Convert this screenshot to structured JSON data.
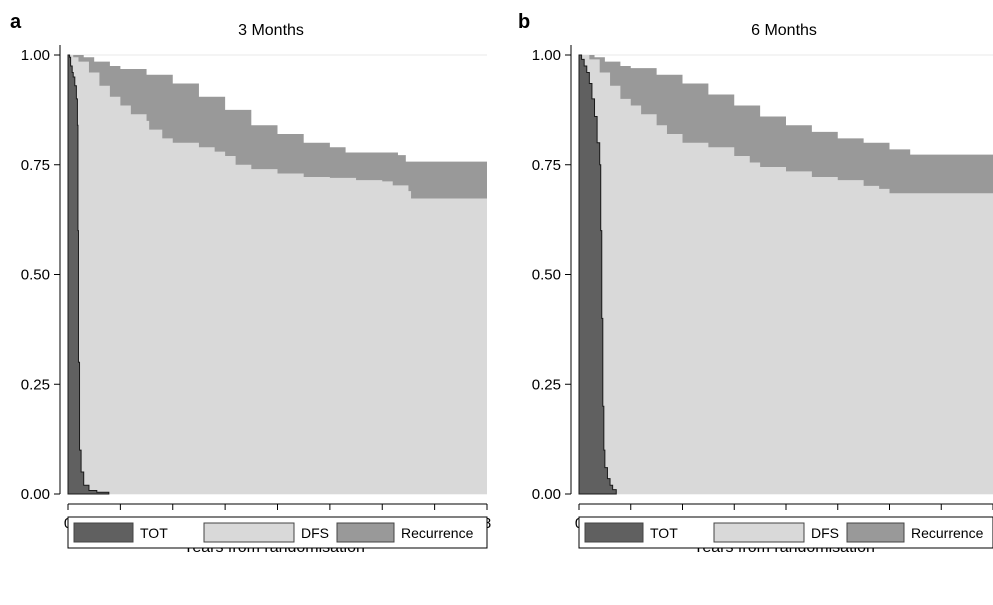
{
  "chart_data": [
    {
      "panel_label": "a",
      "type": "area",
      "title": "3 Months",
      "xlabel": "Years from randomisation",
      "ylabel": "",
      "xlim": [
        0,
        8
      ],
      "ylim": [
        0,
        1
      ],
      "x_ticks": [
        "0",
        "1",
        "2",
        "3",
        "4",
        "5",
        "6",
        "7",
        "8"
      ],
      "y_ticks": [
        "0.00",
        "0.25",
        "0.50",
        "0.75",
        "1.00"
      ],
      "grid": true,
      "legend": {
        "placement": "bottom",
        "entries": [
          "TOT",
          "DFS",
          "Recurrence"
        ]
      },
      "colors": {
        "TOT": "#606060",
        "DFS": "#d9d9d9",
        "Recurrence": "#999999"
      },
      "series": [
        {
          "name": "Recurrence",
          "points": [
            [
              0,
              1.0
            ],
            [
              0.3,
              0.995
            ],
            [
              0.5,
              0.985
            ],
            [
              0.8,
              0.975
            ],
            [
              1.0,
              0.968
            ],
            [
              1.5,
              0.955
            ],
            [
              2.0,
              0.935
            ],
            [
              2.5,
              0.905
            ],
            [
              3.0,
              0.875
            ],
            [
              3.5,
              0.84
            ],
            [
              4.0,
              0.82
            ],
            [
              4.5,
              0.8
            ],
            [
              5.0,
              0.79
            ],
            [
              5.3,
              0.778
            ],
            [
              6.0,
              0.778
            ],
            [
              6.3,
              0.772
            ],
            [
              6.45,
              0.757
            ],
            [
              8.0,
              0.757
            ]
          ]
        },
        {
          "name": "DFS",
          "points": [
            [
              0,
              1.0
            ],
            [
              0.1,
              0.995
            ],
            [
              0.2,
              0.985
            ],
            [
              0.4,
              0.96
            ],
            [
              0.6,
              0.93
            ],
            [
              0.8,
              0.905
            ],
            [
              1.0,
              0.885
            ],
            [
              1.2,
              0.865
            ],
            [
              1.5,
              0.85
            ],
            [
              1.55,
              0.83
            ],
            [
              1.8,
              0.81
            ],
            [
              2.0,
              0.8
            ],
            [
              2.5,
              0.79
            ],
            [
              2.8,
              0.78
            ],
            [
              3.0,
              0.77
            ],
            [
              3.2,
              0.75
            ],
            [
              3.5,
              0.74
            ],
            [
              4.0,
              0.73
            ],
            [
              4.5,
              0.722
            ],
            [
              5.0,
              0.72
            ],
            [
              5.5,
              0.715
            ],
            [
              6.0,
              0.712
            ],
            [
              6.2,
              0.703
            ],
            [
              6.5,
              0.69
            ],
            [
              6.55,
              0.673
            ],
            [
              8.0,
              0.673
            ]
          ]
        },
        {
          "name": "TOT",
          "points": [
            [
              0,
              1.0
            ],
            [
              0.03,
              0.995
            ],
            [
              0.05,
              0.975
            ],
            [
              0.08,
              0.96
            ],
            [
              0.1,
              0.95
            ],
            [
              0.13,
              0.93
            ],
            [
              0.16,
              0.9
            ],
            [
              0.18,
              0.84
            ],
            [
              0.19,
              0.6
            ],
            [
              0.2,
              0.3
            ],
            [
              0.22,
              0.1
            ],
            [
              0.25,
              0.05
            ],
            [
              0.3,
              0.02
            ],
            [
              0.4,
              0.008
            ],
            [
              0.55,
              0.004
            ],
            [
              0.78,
              0.0
            ]
          ]
        }
      ]
    },
    {
      "panel_label": "b",
      "type": "area",
      "title": "6 Months",
      "xlabel": "Years from randomisation",
      "ylabel": "",
      "xlim": [
        0,
        8
      ],
      "ylim": [
        0,
        1
      ],
      "x_ticks": [
        "0",
        "1",
        "2",
        "3",
        "4",
        "5",
        "6",
        "7",
        "8"
      ],
      "y_ticks": [
        "0.00",
        "0.25",
        "0.50",
        "0.75",
        "1.00"
      ],
      "grid": true,
      "legend": {
        "placement": "bottom",
        "entries": [
          "TOT",
          "DFS",
          "Recurrence"
        ]
      },
      "colors": {
        "TOT": "#606060",
        "DFS": "#d9d9d9",
        "Recurrence": "#999999"
      },
      "series": [
        {
          "name": "Recurrence",
          "points": [
            [
              0,
              1.0
            ],
            [
              0.3,
              0.995
            ],
            [
              0.5,
              0.985
            ],
            [
              0.8,
              0.975
            ],
            [
              1.0,
              0.97
            ],
            [
              1.5,
              0.955
            ],
            [
              2.0,
              0.935
            ],
            [
              2.5,
              0.91
            ],
            [
              3.0,
              0.885
            ],
            [
              3.5,
              0.86
            ],
            [
              4.0,
              0.84
            ],
            [
              4.5,
              0.825
            ],
            [
              5.0,
              0.81
            ],
            [
              5.5,
              0.8
            ],
            [
              6.0,
              0.785
            ],
            [
              6.4,
              0.773
            ],
            [
              8.0,
              0.773
            ]
          ]
        },
        {
          "name": "DFS",
          "points": [
            [
              0,
              1.0
            ],
            [
              0.2,
              0.99
            ],
            [
              0.4,
              0.96
            ],
            [
              0.6,
              0.93
            ],
            [
              0.8,
              0.9
            ],
            [
              1.0,
              0.885
            ],
            [
              1.2,
              0.865
            ],
            [
              1.5,
              0.84
            ],
            [
              1.7,
              0.82
            ],
            [
              2.0,
              0.8
            ],
            [
              2.5,
              0.79
            ],
            [
              3.0,
              0.77
            ],
            [
              3.3,
              0.755
            ],
            [
              3.5,
              0.745
            ],
            [
              4.0,
              0.735
            ],
            [
              4.5,
              0.722
            ],
            [
              5.0,
              0.715
            ],
            [
              5.5,
              0.702
            ],
            [
              5.8,
              0.695
            ],
            [
              6.0,
              0.685
            ],
            [
              8.0,
              0.683
            ]
          ]
        },
        {
          "name": "TOT",
          "points": [
            [
              0,
              1.0
            ],
            [
              0.05,
              0.99
            ],
            [
              0.1,
              0.975
            ],
            [
              0.15,
              0.96
            ],
            [
              0.2,
              0.935
            ],
            [
              0.25,
              0.9
            ],
            [
              0.3,
              0.86
            ],
            [
              0.35,
              0.8
            ],
            [
              0.4,
              0.75
            ],
            [
              0.42,
              0.6
            ],
            [
              0.44,
              0.4
            ],
            [
              0.46,
              0.2
            ],
            [
              0.48,
              0.1
            ],
            [
              0.5,
              0.06
            ],
            [
              0.55,
              0.035
            ],
            [
              0.6,
              0.02
            ],
            [
              0.65,
              0.01
            ],
            [
              0.72,
              0.0
            ]
          ]
        }
      ]
    }
  ]
}
